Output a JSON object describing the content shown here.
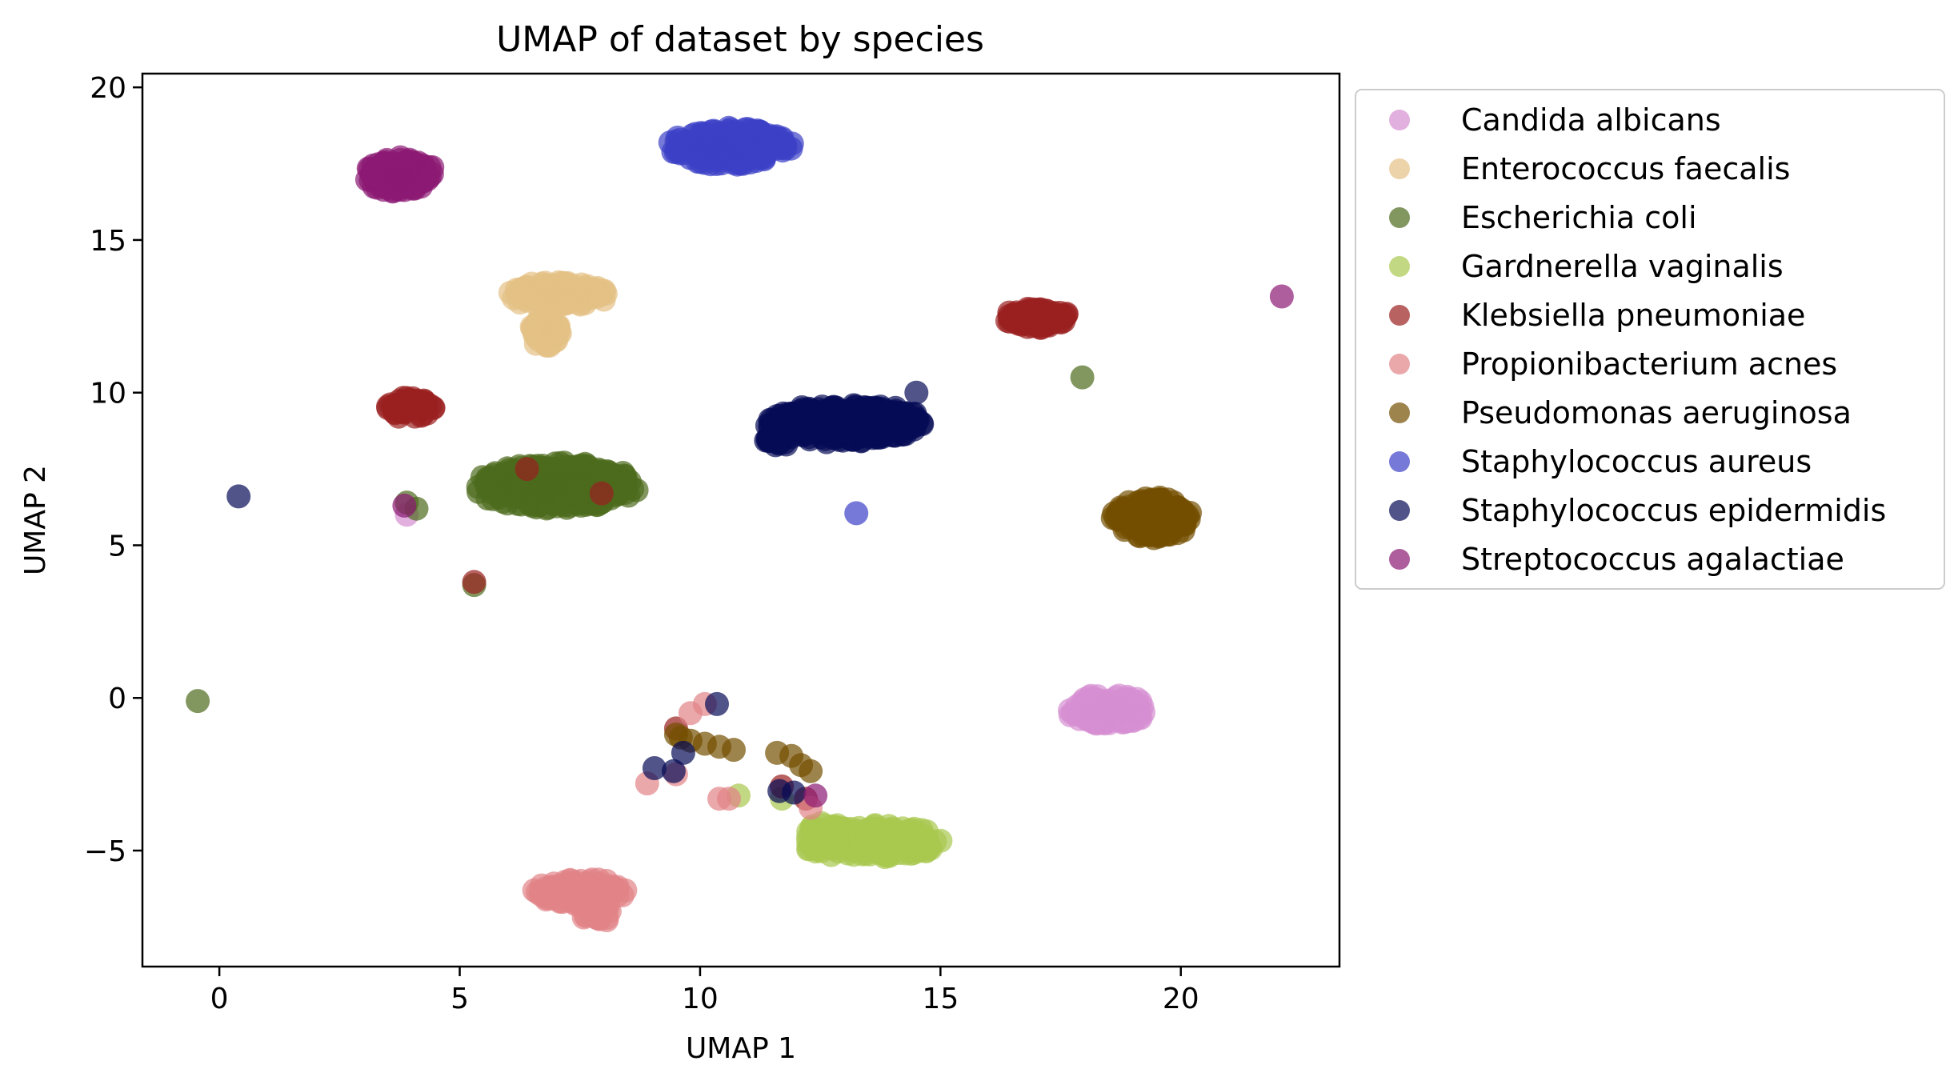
{
  "chart_data": {
    "type": "scatter",
    "title": "UMAP of dataset by species",
    "xlabel": "UMAP 1",
    "ylabel": "UMAP 2",
    "xlim": [
      -1.6,
      23.3
    ],
    "ylim": [
      -8.8,
      20.45
    ],
    "xticks": [
      0,
      5,
      10,
      15,
      20
    ],
    "yticks": [
      -5,
      0,
      5,
      10,
      15,
      20
    ],
    "xtick_labels": [
      "0",
      "5",
      "10",
      "15",
      "20"
    ],
    "ytick_labels": [
      "−5",
      "0",
      "5",
      "10",
      "15",
      "20"
    ],
    "grid": false,
    "legend_position": "outside-right-top",
    "marker_opacity": 0.7,
    "series": [
      {
        "name": "Candida albicans",
        "color": "#d68ed2",
        "clusters": [
          {
            "cx": 18.5,
            "cy": -0.4,
            "rx": 0.85,
            "ry": 0.55,
            "n": 120
          }
        ],
        "points": [
          [
            3.9,
            6.0
          ]
        ]
      },
      {
        "name": "Enterococcus faecalis",
        "color": "#e4c184",
        "clusters": [
          {
            "cx": 7.1,
            "cy": 13.2,
            "rx": 1.1,
            "ry": 0.45,
            "n": 120
          },
          {
            "cx": 6.8,
            "cy": 12.0,
            "rx": 0.35,
            "ry": 0.55,
            "n": 40
          }
        ],
        "points": []
      },
      {
        "name": "Escherichia coli",
        "color": "#4d6b1d",
        "clusters": [
          {
            "cx": 7.0,
            "cy": 6.95,
            "rx": 1.75,
            "ry": 0.8,
            "n": 320
          }
        ],
        "points": [
          [
            -0.45,
            -0.1
          ],
          [
            17.95,
            10.5
          ],
          [
            4.1,
            6.2
          ],
          [
            5.3,
            3.7
          ],
          [
            3.9,
            6.4
          ]
        ]
      },
      {
        "name": "Gardnerella vaginalis",
        "color": "#a8c84e",
        "clusters": [
          {
            "cx": 13.8,
            "cy": -4.7,
            "rx": 1.25,
            "ry": 0.55,
            "n": 160
          },
          {
            "cx": 12.6,
            "cy": -4.6,
            "rx": 0.55,
            "ry": 0.6,
            "n": 60
          }
        ],
        "points": [
          [
            10.8,
            -3.2
          ],
          [
            11.7,
            -3.3
          ]
        ]
      },
      {
        "name": "Klebsiella pneumoniae",
        "color": "#9a1f1f",
        "clusters": [
          {
            "cx": 17.0,
            "cy": 12.45,
            "rx": 0.75,
            "ry": 0.35,
            "n": 90
          },
          {
            "cx": 3.95,
            "cy": 9.5,
            "rx": 0.55,
            "ry": 0.35,
            "n": 60
          }
        ],
        "points": [
          [
            6.4,
            7.5
          ],
          [
            7.95,
            6.7
          ],
          [
            5.3,
            3.8
          ],
          [
            9.5,
            -1.0
          ],
          [
            11.7,
            -2.9
          ],
          [
            12.2,
            -3.3
          ]
        ]
      },
      {
        "name": "Propionibacterium acnes",
        "color": "#e18387",
        "clusters": [
          {
            "cx": 7.5,
            "cy": -6.35,
            "rx": 1.05,
            "ry": 0.45,
            "n": 110
          },
          {
            "cx": 7.85,
            "cy": -7.0,
            "rx": 0.35,
            "ry": 0.4,
            "n": 30
          }
        ],
        "points": [
          [
            8.9,
            -2.8
          ],
          [
            9.8,
            -0.5
          ],
          [
            10.1,
            -0.2
          ],
          [
            10.4,
            -3.3
          ],
          [
            10.6,
            -3.3
          ],
          [
            12.3,
            -3.6
          ],
          [
            9.5,
            -2.5
          ]
        ]
      },
      {
        "name": "Pseudomonas aeruginosa",
        "color": "#734f00",
        "clusters": [
          {
            "cx": 19.4,
            "cy": 5.9,
            "rx": 0.85,
            "ry": 0.7,
            "n": 140
          }
        ],
        "points": [
          [
            9.6,
            -1.3
          ],
          [
            9.8,
            -1.4
          ],
          [
            10.1,
            -1.5
          ],
          [
            10.4,
            -1.6
          ],
          [
            10.7,
            -1.7
          ],
          [
            11.6,
            -1.8
          ],
          [
            11.9,
            -1.9
          ],
          [
            12.1,
            -2.2
          ],
          [
            12.3,
            -2.4
          ],
          [
            9.5,
            -1.2
          ]
        ]
      },
      {
        "name": "Staphylococcus aureus",
        "color": "#3c40c6",
        "clusters": [
          {
            "cx": 10.6,
            "cy": 18.05,
            "rx": 1.35,
            "ry": 0.65,
            "n": 200
          }
        ],
        "points": [
          [
            13.25,
            6.05
          ]
        ]
      },
      {
        "name": "Staphylococcus epidermidis",
        "color": "#050b55",
        "clusters": [
          {
            "cx": 13.0,
            "cy": 9.0,
            "rx": 1.7,
            "ry": 0.65,
            "n": 300
          },
          {
            "cx": 11.6,
            "cy": 8.5,
            "rx": 0.35,
            "ry": 0.25,
            "n": 25
          }
        ],
        "points": [
          [
            0.4,
            6.6
          ],
          [
            14.5,
            10.0
          ],
          [
            9.05,
            -2.3
          ],
          [
            9.45,
            -2.4
          ],
          [
            9.65,
            -1.8
          ],
          [
            10.35,
            -0.2
          ],
          [
            11.65,
            -3.05
          ],
          [
            11.95,
            -3.1
          ]
        ]
      },
      {
        "name": "Streptococcus agalactiae",
        "color": "#8b1a74",
        "clusters": [
          {
            "cx": 3.75,
            "cy": 17.15,
            "rx": 0.75,
            "ry": 0.6,
            "n": 130
          }
        ],
        "points": [
          [
            22.1,
            13.15
          ],
          [
            3.85,
            6.3
          ],
          [
            12.4,
            -3.2
          ]
        ]
      }
    ]
  }
}
